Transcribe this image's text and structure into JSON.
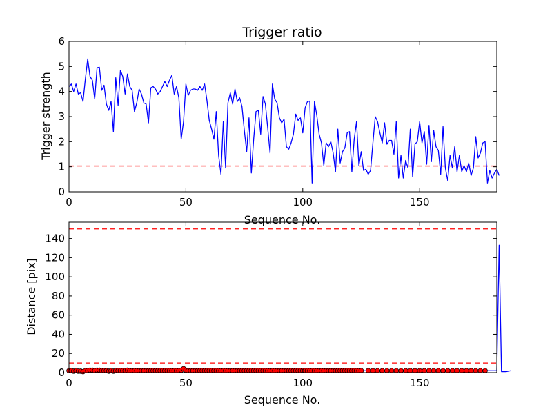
{
  "chart_data": [
    {
      "type": "line",
      "title": "Trigger ratio",
      "xlabel": "Sequence No.",
      "ylabel": "Trigger strength",
      "xlim": [
        0,
        183
      ],
      "ylim": [
        0,
        6
      ],
      "xticks": [
        0,
        50,
        100,
        150
      ],
      "yticks": [
        0,
        1,
        2,
        3,
        4,
        5,
        6
      ],
      "grid": false,
      "line_color": "#0000ff",
      "threshold_color": "#ff0000",
      "thresholds": [
        1.03
      ],
      "series": [
        {
          "values": [
            4.2,
            4.3,
            4.0,
            4.3,
            3.9,
            3.95,
            3.6,
            4.5,
            5.3,
            4.6,
            4.45,
            3.7,
            4.95,
            4.97,
            4.05,
            4.25,
            3.5,
            3.25,
            3.6,
            2.4,
            4.55,
            3.45,
            4.85,
            4.6,
            3.9,
            4.7,
            4.2,
            4.05,
            3.2,
            3.55,
            4.1,
            3.9,
            3.55,
            3.5,
            2.75,
            4.15,
            4.2,
            4.1,
            3.9,
            4.0,
            4.2,
            4.4,
            4.2,
            4.45,
            4.65,
            3.9,
            4.2,
            3.75,
            2.1,
            2.8,
            4.3,
            3.85,
            4.05,
            4.1,
            4.1,
            4.05,
            4.2,
            4.05,
            4.3,
            3.65,
            2.85,
            2.5,
            2.1,
            3.2,
            1.45,
            0.7,
            2.8,
            0.95,
            3.55,
            3.95,
            3.5,
            4.1,
            3.6,
            3.75,
            3.4,
            2.45,
            1.6,
            2.95,
            0.75,
            2.1,
            3.2,
            3.25,
            2.3,
            3.8,
            3.5,
            2.55,
            1.55,
            4.3,
            3.7,
            3.55,
            2.95,
            2.75,
            2.9,
            1.8,
            1.7,
            1.95,
            2.3,
            3.1,
            2.85,
            2.95,
            2.35,
            3.35,
            3.6,
            3.62,
            0.35,
            3.6,
            3.05,
            2.3,
            1.95,
            1.05,
            1.95,
            1.8,
            2.0,
            1.55,
            0.8,
            2.5,
            1.15,
            1.6,
            1.75,
            2.35,
            2.4,
            0.8,
            2.1,
            2.8,
            1.05,
            1.6,
            0.85,
            0.9,
            0.7,
            0.85,
            1.95,
            3.0,
            2.8,
            2.35,
            1.95,
            2.75,
            1.9,
            2.05,
            2.05,
            1.5,
            2.8,
            0.55,
            1.45,
            0.55,
            1.25,
            0.95,
            2.5,
            0.6,
            1.9,
            2.0,
            2.8,
            1.95,
            2.4,
            1.1,
            2.65,
            1.2,
            2.45,
            1.8,
            1.65,
            0.7,
            2.6,
            0.95,
            0.45,
            1.45,
            0.95,
            1.8,
            0.8,
            1.45,
            0.8,
            1.05,
            0.8,
            1.15,
            0.65,
            0.95,
            2.2,
            1.35,
            1.55,
            1.95,
            2.0,
            0.35,
            0.85,
            0.55,
            0.75,
            0.9,
            0.65
          ]
        }
      ]
    },
    {
      "type": "line",
      "title": "",
      "xlabel": "Sequence No.",
      "ylabel": "Distance [pix]",
      "xlim": [
        0,
        183
      ],
      "ylim": [
        0,
        157
      ],
      "xticks": [
        0,
        50,
        100,
        150
      ],
      "yticks": [
        0,
        20,
        40,
        60,
        80,
        100,
        120,
        140
      ],
      "grid": false,
      "line_color": "#0000ff",
      "marker_color": "#ff0000",
      "threshold_color": "#ff0000",
      "thresholds": [
        10,
        150
      ],
      "series": [
        {
          "values": [
            2,
            2,
            1.5,
            2,
            1.5,
            1.5,
            1,
            2,
            2,
            2.5,
            2.5,
            2,
            2.5,
            2.5,
            2,
            2,
            2,
            1.5,
            2,
            1.5,
            2,
            2,
            2,
            2,
            2,
            2.5,
            2,
            2,
            2,
            2,
            2,
            2,
            2,
            2,
            2,
            2,
            2,
            2,
            2,
            2,
            2,
            2,
            2,
            2,
            2,
            2,
            2,
            2,
            2.5,
            4,
            2.5,
            2,
            2,
            2,
            2,
            2,
            2,
            2,
            2,
            2,
            2,
            2,
            2,
            2,
            2,
            2,
            2,
            2,
            2,
            2,
            2,
            2,
            2,
            2,
            2,
            2,
            2,
            2,
            2,
            2,
            2,
            2,
            2,
            2,
            2,
            2,
            2,
            2,
            2,
            2,
            2,
            2,
            2,
            2,
            2,
            2,
            2,
            2,
            2,
            2,
            2,
            2,
            2,
            2,
            2,
            2,
            2,
            2,
            2,
            2,
            2,
            2,
            2,
            2,
            2,
            2,
            2,
            2,
            2,
            2,
            2,
            2,
            2,
            2,
            2,
            2,
            2,
            2,
            2,
            2,
            2,
            2,
            2,
            2,
            2,
            2,
            2,
            2,
            2,
            2,
            2,
            2,
            2,
            2,
            2,
            2,
            2,
            2,
            2,
            2,
            2,
            2,
            2,
            2,
            2,
            2,
            2,
            2,
            2,
            2,
            2,
            2,
            2,
            2,
            2,
            2,
            2,
            2,
            2,
            2,
            2,
            2,
            2,
            2,
            2,
            2,
            2,
            2,
            2,
            2,
            2,
            2,
            2,
            2,
            133,
            1,
            1,
            1,
            1.5,
            2
          ],
          "markers": [
            0,
            1,
            2,
            3,
            4,
            5,
            6,
            7,
            8,
            9,
            10,
            11,
            12,
            13,
            14,
            15,
            16,
            17,
            18,
            19,
            20,
            21,
            22,
            23,
            24,
            25,
            26,
            27,
            28,
            29,
            30,
            31,
            32,
            33,
            34,
            35,
            36,
            37,
            38,
            39,
            40,
            41,
            42,
            43,
            44,
            45,
            46,
            47,
            48,
            49,
            50,
            51,
            52,
            53,
            54,
            55,
            56,
            57,
            58,
            59,
            60,
            61,
            62,
            63,
            64,
            65,
            66,
            67,
            68,
            69,
            70,
            71,
            72,
            73,
            74,
            75,
            76,
            77,
            78,
            79,
            80,
            81,
            82,
            83,
            84,
            85,
            86,
            87,
            88,
            89,
            90,
            91,
            92,
            93,
            94,
            95,
            96,
            97,
            98,
            99,
            100,
            101,
            102,
            103,
            104,
            105,
            106,
            107,
            108,
            109,
            110,
            111,
            112,
            113,
            114,
            115,
            116,
            117,
            118,
            119,
            120,
            121,
            122,
            123,
            124,
            125,
            128,
            130,
            132,
            134,
            136,
            138,
            140,
            142,
            144,
            146,
            148,
            150,
            152,
            154,
            156,
            158,
            160,
            162,
            164,
            166,
            168,
            170,
            172,
            174,
            176,
            178
          ]
        }
      ]
    }
  ]
}
